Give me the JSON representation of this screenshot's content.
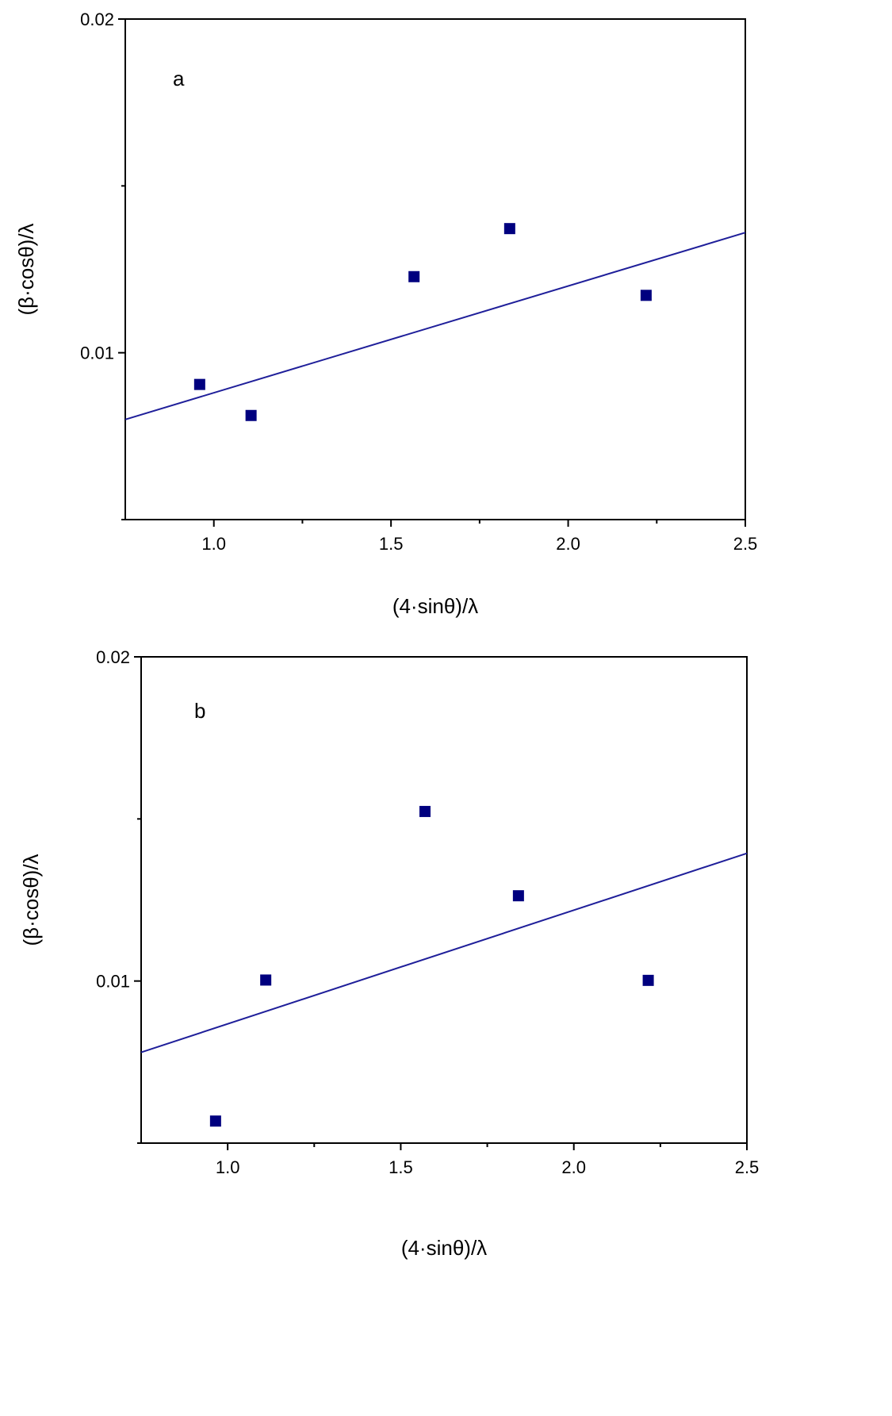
{
  "colors": {
    "marker": "#00007f",
    "fit_line": "#1f1f9a",
    "axis": "#000000"
  },
  "chart_data": [
    {
      "type": "scatter",
      "panel_label": "a",
      "xlabel": "(4·sinθ)/λ",
      "ylabel": "(β·cosθ)/λ",
      "xlim": [
        0.75,
        2.5
      ],
      "ylim": [
        0.005,
        0.02
      ],
      "x_ticks": [
        1.0,
        1.5,
        2.0,
        2.5
      ],
      "x_tick_labels": [
        "1.0",
        "1.5",
        "2.0",
        "2.5"
      ],
      "y_ticks": [
        0.01,
        0.02
      ],
      "y_tick_labels": [
        "0.01",
        "0.02"
      ],
      "x_minor_ticks": [
        1.25,
        1.75,
        2.25
      ],
      "y_minor_ticks": [
        0.005,
        0.015
      ],
      "points": [
        {
          "x": 0.96,
          "y": 0.00905
        },
        {
          "x": 1.105,
          "y": 0.00812
        },
        {
          "x": 1.565,
          "y": 0.01228
        },
        {
          "x": 1.835,
          "y": 0.01372
        },
        {
          "x": 2.22,
          "y": 0.01172
        }
      ],
      "fit_line": [
        {
          "x": 0.75,
          "y": 0.008
        },
        {
          "x": 2.5,
          "y": 0.0136
        }
      ]
    },
    {
      "type": "scatter",
      "panel_label": "b",
      "xlabel": "(4·sinθ)/λ",
      "ylabel": "(β·cosθ)/λ",
      "xlim": [
        0.75,
        2.5
      ],
      "ylim": [
        0.005,
        0.02
      ],
      "x_ticks": [
        1.0,
        1.5,
        2.0,
        2.5
      ],
      "x_tick_labels": [
        "1.0",
        "1.5",
        "2.0",
        "2.5"
      ],
      "y_ticks": [
        0.01,
        0.02
      ],
      "y_tick_labels": [
        "0.01",
        "0.02"
      ],
      "x_minor_ticks": [
        1.25,
        1.75,
        2.25
      ],
      "y_minor_ticks": [
        0.005,
        0.015
      ],
      "points": [
        {
          "x": 0.965,
          "y": 0.00568
        },
        {
          "x": 1.11,
          "y": 0.01003
        },
        {
          "x": 1.57,
          "y": 0.01523
        },
        {
          "x": 1.84,
          "y": 0.01263
        },
        {
          "x": 2.215,
          "y": 0.01002
        }
      ],
      "fit_line": [
        {
          "x": 0.75,
          "y": 0.0078
        },
        {
          "x": 2.5,
          "y": 0.01394
        }
      ]
    }
  ]
}
